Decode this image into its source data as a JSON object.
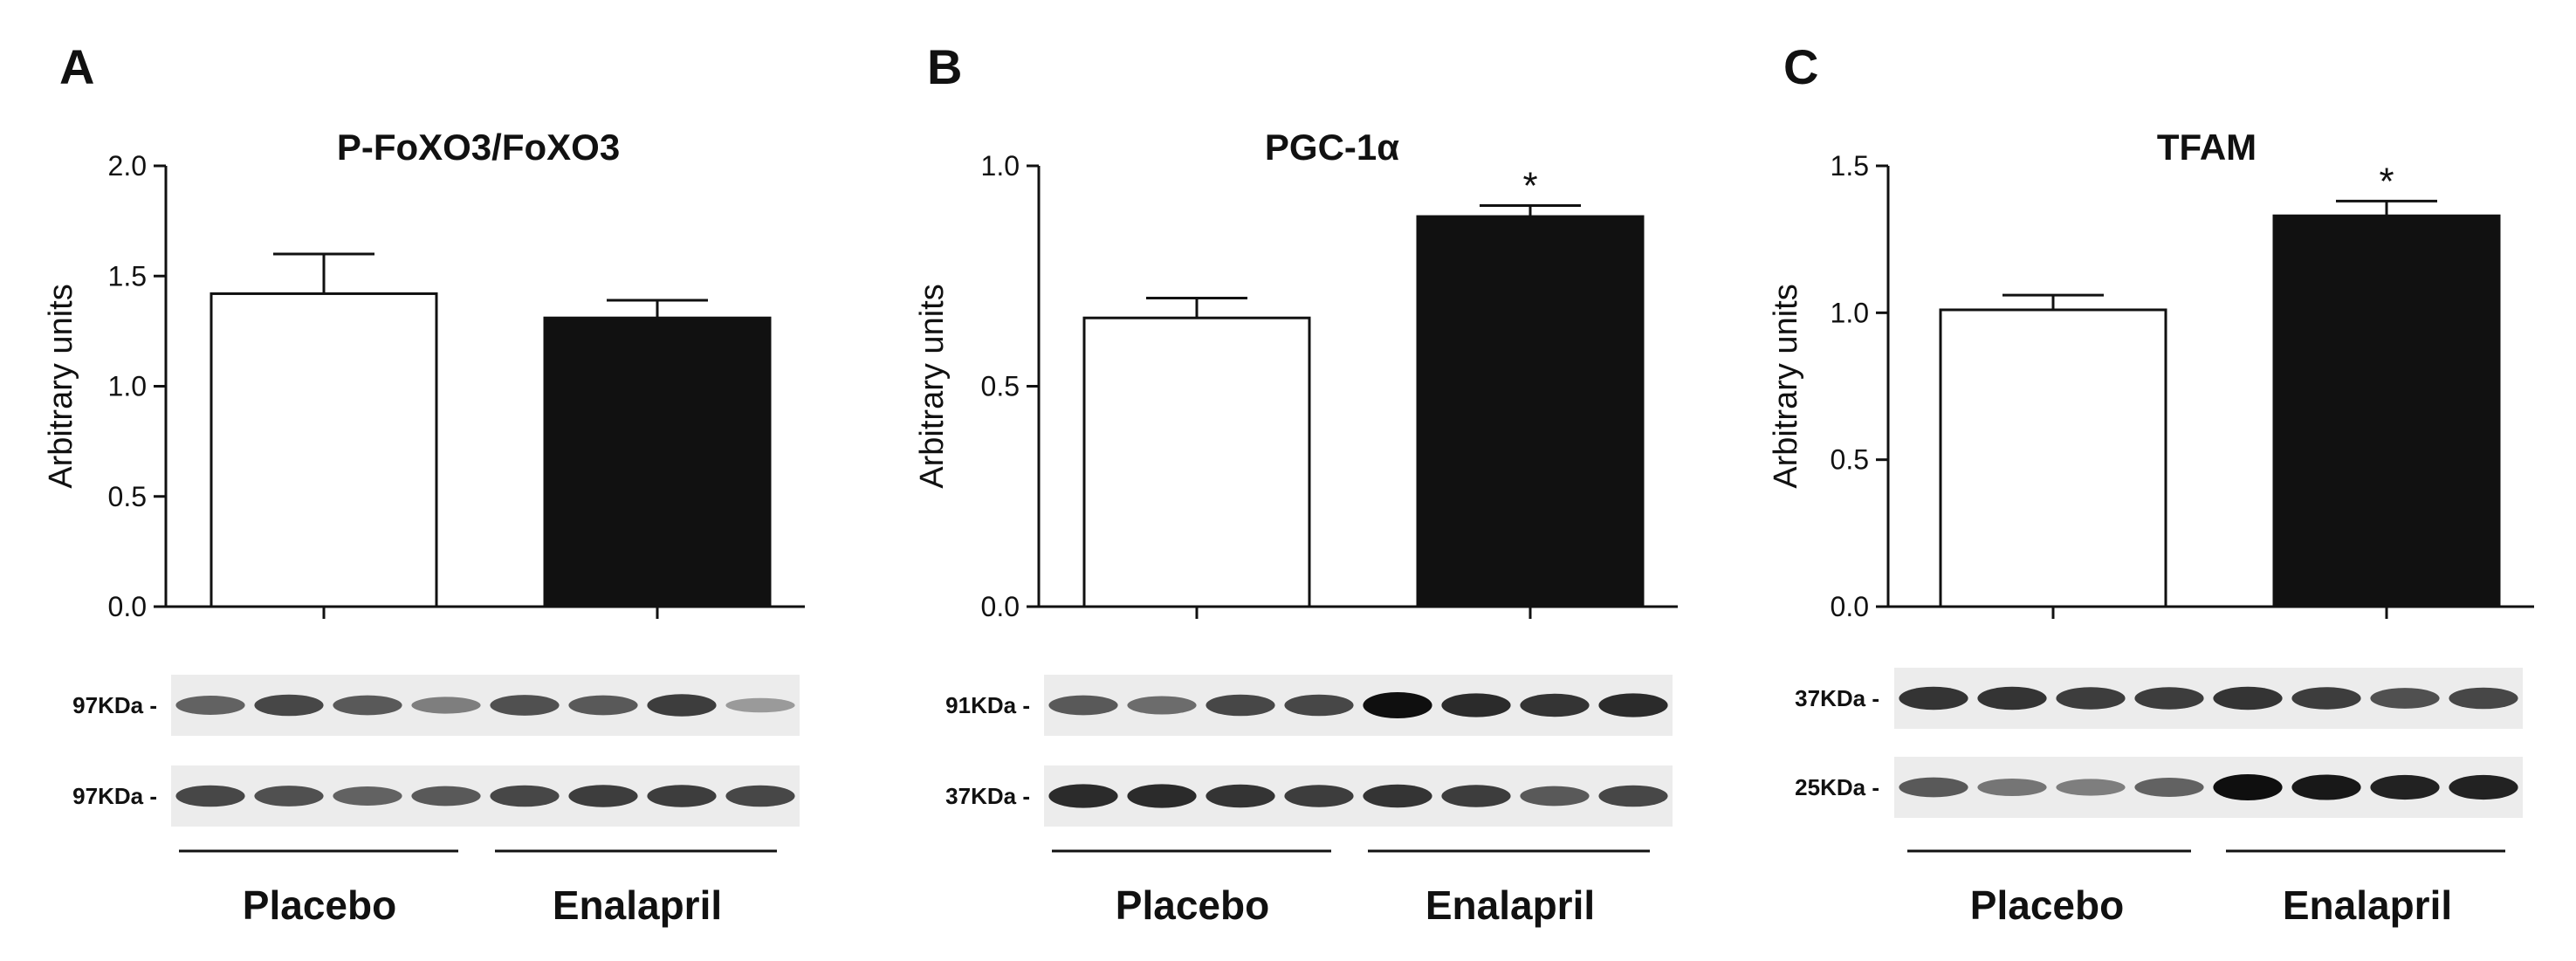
{
  "chart_data": [
    {
      "panel": "A",
      "type": "bar",
      "title": "P-FoXO3/FoXO3",
      "ylabel": "Arbitrary units",
      "ylim": [
        0,
        2.0
      ],
      "yticks": [
        "0.0",
        "0.5",
        "1.0",
        "1.5",
        "2.0"
      ],
      "categories": [
        "Placebo",
        "Enalapril"
      ],
      "values": [
        1.42,
        1.31
      ],
      "errors": [
        0.18,
        0.08
      ],
      "bar_colors": [
        "#ffffff",
        "#111111"
      ],
      "significance": [
        "",
        ""
      ],
      "blot_labels": [
        "97KDa -",
        "97KDa -"
      ],
      "groups": [
        "Placebo",
        "Enalapril"
      ]
    },
    {
      "panel": "B",
      "type": "bar",
      "title": "PGC-1α",
      "ylabel": "Arbitrary units",
      "ylim": [
        0,
        1.0
      ],
      "yticks": [
        "0.0",
        "0.5",
        "1.0"
      ],
      "categories": [
        "Placebo",
        "Enalapril"
      ],
      "values": [
        0.655,
        0.885
      ],
      "errors": [
        0.045,
        0.025
      ],
      "bar_colors": [
        "#ffffff",
        "#111111"
      ],
      "significance": [
        "",
        "*"
      ],
      "blot_labels": [
        "91KDa -",
        "37KDa -"
      ],
      "groups": [
        "Placebo",
        "Enalapril"
      ]
    },
    {
      "panel": "C",
      "type": "bar",
      "title": "TFAM",
      "ylabel": "Arbitrary units",
      "ylim": [
        0,
        1.5
      ],
      "yticks": [
        "0.0",
        "0.5",
        "1.0",
        "1.5"
      ],
      "categories": [
        "Placebo",
        "Enalapril"
      ],
      "values": [
        1.01,
        1.33
      ],
      "errors": [
        0.05,
        0.05
      ],
      "bar_colors": [
        "#ffffff",
        "#111111"
      ],
      "significance": [
        "",
        "*"
      ],
      "blot_labels": [
        "37KDa -",
        "25KDa -"
      ],
      "groups": [
        "Placebo",
        "Enalapril"
      ]
    }
  ],
  "blot_bands": [
    [
      [
        0.55,
        0.7,
        0.6,
        0.4,
        0.65,
        0.6,
        0.75,
        0.25
      ],
      [
        0.7,
        0.65,
        0.55,
        0.6,
        0.7,
        0.75,
        0.75,
        0.7
      ]
    ],
    [
      [
        0.6,
        0.5,
        0.7,
        0.7,
        1.0,
        0.85,
        0.8,
        0.85
      ],
      [
        0.85,
        0.85,
        0.8,
        0.75,
        0.8,
        0.75,
        0.6,
        0.7
      ]
    ],
    [
      [
        0.8,
        0.8,
        0.75,
        0.75,
        0.8,
        0.75,
        0.65,
        0.7
      ],
      [
        0.6,
        0.45,
        0.4,
        0.55,
        1.0,
        0.95,
        0.9,
        0.9
      ]
    ]
  ]
}
